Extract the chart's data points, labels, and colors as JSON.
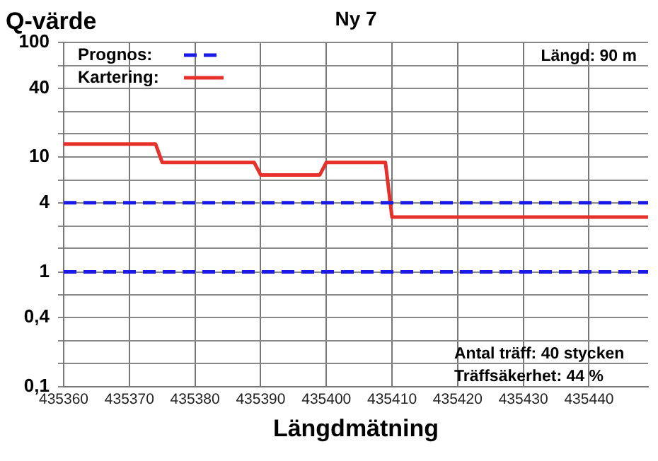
{
  "chart_data": {
    "type": "line",
    "title": "Ny 7",
    "ylabel": "Q-värde",
    "xlabel": "Längdmätning",
    "xlim": [
      435360,
      435449
    ],
    "xticks": [
      435360,
      435370,
      435380,
      435390,
      435400,
      435410,
      435420,
      435430,
      435440
    ],
    "ylim": [
      0.1,
      100
    ],
    "yticks": [
      {
        "value": 0.1,
        "label": "0,1"
      },
      {
        "value": 0.16,
        "label": null
      },
      {
        "value": 0.25,
        "label": null
      },
      {
        "value": 0.4,
        "label": "0,4"
      },
      {
        "value": 0.63,
        "label": null
      },
      1,
      {
        "value": 1.6,
        "label": null
      },
      {
        "value": 2.5,
        "label": null
      },
      4,
      {
        "value": 6.3,
        "label": null
      },
      10,
      {
        "value": 16,
        "label": null
      },
      {
        "value": 25,
        "label": null
      },
      40,
      {
        "value": 63,
        "label": null
      },
      100
    ],
    "log": "y",
    "grid": true,
    "legend": "top left",
    "marker": "none",
    "series": [
      {
        "name": "Prognos:",
        "color": "#1a1ae6",
        "line_style": "dashed",
        "x": [
          435360,
          435449
        ],
        "values": [
          4,
          4
        ]
      },
      {
        "color": "#1a1ae6",
        "line_style": "dashed",
        "x": [
          435360,
          435449
        ],
        "values": [
          1,
          1
        ]
      },
      {
        "name": "Kartering:",
        "color": "#e8302a",
        "line_style": "solid",
        "x": [
          435360,
          435374,
          435375,
          435389,
          435390,
          435399,
          435400,
          435409,
          435410,
          435449
        ],
        "values": [
          13,
          13,
          9,
          9,
          7,
          7,
          9,
          9,
          3,
          3
        ]
      }
    ],
    "annotations": [
      "Längd: 90 m",
      "Antal träff: 40 stycken",
      "Träffsäkerhet: 44 %"
    ]
  }
}
